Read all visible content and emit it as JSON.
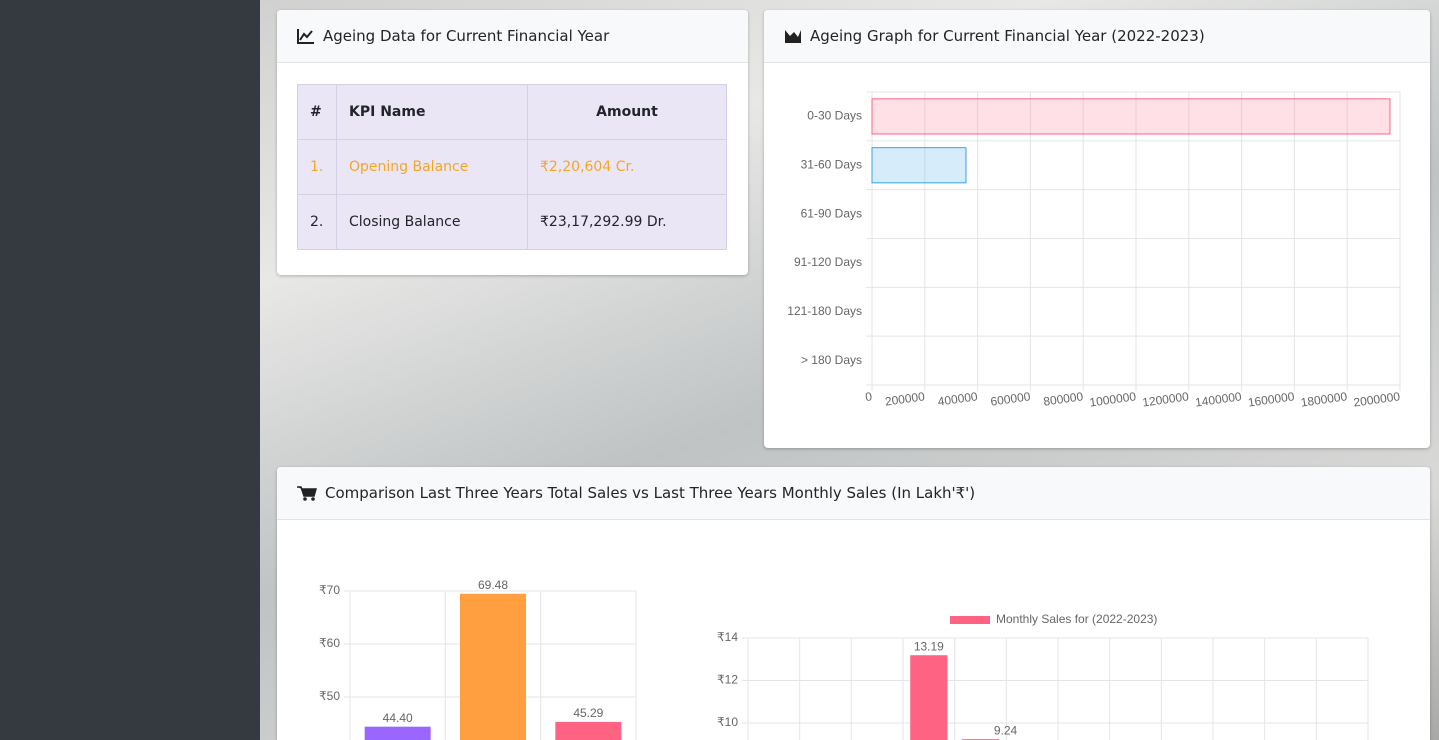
{
  "table_card": {
    "title": "Ageing Data for Current Financial Year",
    "table": {
      "header": [
        "#",
        "KPI Name",
        "Amount"
      ],
      "rows": [
        [
          "1.",
          "Opening Balance",
          "₹2,20,604 Cr."
        ],
        [
          "2.",
          "Closing Balance",
          "₹23,17,292.99 Dr."
        ]
      ]
    }
  },
  "ageing_card": {
    "title": "Ageing Graph for Current Financial Year (2022-2023)"
  },
  "sales_card": {
    "title": "Comparison Last Three Years Total Sales vs Last Three Years Monthly Sales (In Lakh'₹')"
  },
  "chart_data": [
    {
      "type": "bar",
      "orientation": "horizontal",
      "categories": [
        "0-30 Days",
        "31-60 Days",
        "61-90 Days",
        "91-120 Days",
        "121-180 Days",
        "> 180 Days"
      ],
      "values": [
        1962000,
        356000,
        0,
        0,
        0,
        0
      ],
      "colors": [
        "rgba(255,99,132,0.2)",
        "rgba(54,162,235,0.2)",
        "rgba(255,206,86,0.2)",
        "rgba(75,192,192,0.2)",
        "rgba(153,102,255,0.2)",
        "rgba(255,159,64,0.2)"
      ],
      "border_colors": [
        "#ff6384",
        "#36a2eb",
        "#ffce56",
        "#4bc0c0",
        "#9966ff",
        "#ff9f40"
      ],
      "xlim": [
        0,
        2000000
      ],
      "xticks": [
        0,
        200000,
        400000,
        600000,
        800000,
        1000000,
        1200000,
        1400000,
        1600000,
        1800000,
        2000000
      ],
      "grid": true
    },
    {
      "type": "bar",
      "values": [
        44.4,
        69.48,
        45.29
      ],
      "value_labels": [
        "44.40",
        "69.48",
        "45.29"
      ],
      "colors": [
        "#9966ff",
        "#ff9f40",
        "#ff6384"
      ],
      "ylim": [
        40,
        70
      ],
      "yticks": [
        {
          "value": 50,
          "label": "₹50"
        },
        {
          "value": 60,
          "label": "₹60"
        },
        {
          "value": 70,
          "label": "₹70"
        }
      ],
      "grid": true
    },
    {
      "type": "bar",
      "series": [
        {
          "name": "Monthly Sales for (2022-2023)",
          "color": "#ff6384",
          "values": [
            null,
            null,
            null,
            13.19,
            9.24,
            null,
            null,
            null,
            null,
            null,
            null,
            null
          ],
          "value_labels": [
            null,
            null,
            null,
            "13.19",
            "9.24",
            null,
            null,
            null,
            null,
            null,
            null,
            null
          ]
        }
      ],
      "ylim": [
        8,
        14
      ],
      "yticks": [
        {
          "value": 10,
          "label": "₹10"
        },
        {
          "value": 12,
          "label": "₹12"
        },
        {
          "value": 14,
          "label": "₹14"
        }
      ],
      "grid": true
    }
  ]
}
